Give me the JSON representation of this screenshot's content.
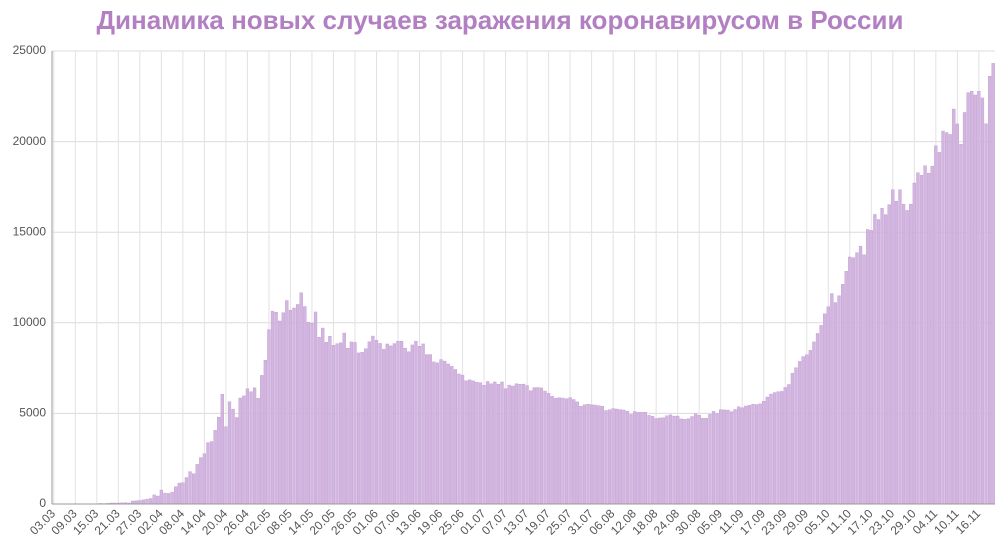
{
  "chart_data": {
    "type": "bar",
    "title": "Динамика новых случаев заражения коронавирусом в России",
    "title_color": "#b27fc2",
    "color": "#d3b6e0",
    "edge_color": "#bf98d0",
    "grid": true,
    "ylim": [
      0,
      25000
    ],
    "yticks": [
      0,
      5000,
      10000,
      15000,
      20000,
      25000
    ],
    "categories": [
      "03.03",
      null,
      null,
      null,
      null,
      null,
      "09.03",
      null,
      null,
      null,
      null,
      null,
      "15.03",
      null,
      null,
      null,
      null,
      null,
      "21.03",
      null,
      null,
      null,
      null,
      null,
      "27.03",
      null,
      null,
      null,
      null,
      null,
      "02.04",
      null,
      null,
      null,
      null,
      null,
      "08.04",
      null,
      null,
      null,
      null,
      null,
      "14.04",
      null,
      null,
      null,
      null,
      null,
      "20.04",
      null,
      null,
      null,
      null,
      null,
      "26.04",
      null,
      null,
      null,
      null,
      null,
      "02.05",
      null,
      null,
      null,
      null,
      null,
      "08.05",
      null,
      null,
      null,
      null,
      null,
      "14.05",
      null,
      null,
      null,
      null,
      null,
      "20.05",
      null,
      null,
      null,
      null,
      null,
      "26.05",
      null,
      null,
      null,
      null,
      null,
      "01.06",
      null,
      null,
      null,
      null,
      null,
      "07.06",
      null,
      null,
      null,
      null,
      null,
      "13.06",
      null,
      null,
      null,
      null,
      null,
      "19.06",
      null,
      null,
      null,
      null,
      null,
      "25.06",
      null,
      null,
      null,
      null,
      null,
      "01.07",
      null,
      null,
      null,
      null,
      null,
      "07.07",
      null,
      null,
      null,
      null,
      null,
      "13.07",
      null,
      null,
      null,
      null,
      null,
      "19.07",
      null,
      null,
      null,
      null,
      null,
      "25.07",
      null,
      null,
      null,
      null,
      null,
      "31.07",
      null,
      null,
      null,
      null,
      null,
      "06.08",
      null,
      null,
      null,
      null,
      null,
      "12.08",
      null,
      null,
      null,
      null,
      null,
      "18.08",
      null,
      null,
      null,
      null,
      null,
      "24.08",
      null,
      null,
      null,
      null,
      null,
      "30.08",
      null,
      null,
      null,
      null,
      null,
      "05.09",
      null,
      null,
      null,
      null,
      null,
      "11.09",
      null,
      null,
      null,
      null,
      null,
      "17.09",
      null,
      null,
      null,
      null,
      null,
      "23.09",
      null,
      null,
      null,
      null,
      null,
      "29.09",
      null,
      null,
      null,
      null,
      null,
      "05.10",
      null,
      null,
      null,
      null,
      null,
      "11.10",
      null,
      null,
      null,
      null,
      null,
      "17.10",
      null,
      null,
      null,
      null,
      null,
      "23.10",
      null,
      null,
      null,
      null,
      null,
      "29.10",
      null,
      null,
      null,
      null,
      null,
      "04.11",
      null,
      null,
      null,
      null,
      null,
      "10.11",
      null,
      null,
      null,
      null,
      null,
      "16.11",
      null,
      null,
      null,
      null
    ],
    "values": [
      0,
      0,
      0,
      1,
      0,
      0,
      0,
      7,
      3,
      14,
      6,
      11,
      14,
      30,
      21,
      33,
      52,
      54,
      53,
      61,
      71,
      57,
      163,
      182,
      196,
      228,
      270,
      302,
      501,
      440,
      771,
      601,
      582,
      658,
      954,
      1154,
      1175,
      1459,
      1786,
      1667,
      2186,
      2558,
      2774,
      3388,
      3448,
      4070,
      4785,
      6060,
      4268,
      5642,
      5236,
      4774,
      5849,
      5966,
      6361,
      6198,
      6411,
      5841,
      7099,
      7933,
      9623,
      10633,
      10581,
      10102,
      10559,
      11231,
      10699,
      10817,
      11012,
      11656,
      10899,
      10028,
      9974,
      10598,
      9200,
      9709,
      8926,
      9263,
      8764,
      8849,
      8894,
      9434,
      8599,
      8946,
      8915,
      8338,
      8371,
      8572,
      8952,
      9268,
      9035,
      8863,
      8536,
      8831,
      8726,
      8855,
      8984,
      8985,
      8595,
      8404,
      8779,
      8987,
      8706,
      8835,
      8246,
      8248,
      7843,
      7790,
      7972,
      7889,
      7728,
      7600,
      7425,
      7176,
      7113,
      6800,
      6852,
      6791,
      6719,
      6693,
      6556,
      6760,
      6632,
      6736,
      6611,
      6736,
      6368,
      6562,
      6509,
      6635,
      6611,
      6615,
      6537,
      6248,
      6422,
      6428,
      6406,
      6234,
      6109,
      5940,
      5842,
      5862,
      5848,
      5811,
      5871,
      5765,
      5635,
      5395,
      5475,
      5509,
      5482,
      5462,
      5427,
      5394,
      5159,
      5204,
      5267,
      5241,
      5212,
      5189,
      5118,
      4945,
      5102,
      5057,
      5061,
      5065,
      4892,
      4839,
      4718,
      4748,
      4767,
      4870,
      4921,
      4852,
      4852,
      4696,
      4676,
      4711,
      4829,
      4980,
      4897,
      4729,
      4729,
      4952,
      5110,
      4995,
      5205,
      5195,
      5185,
      5099,
      5218,
      5363,
      5310,
      5405,
      5449,
      5509,
      5488,
      5529,
      5670,
      5905,
      6065,
      6148,
      6196,
      6215,
      6431,
      6595,
      7212,
      7523,
      7867,
      8135,
      8232,
      8481,
      8945,
      9412,
      9859,
      10499,
      10888,
      11615,
      11115,
      11493,
      12126,
      12846,
      13634,
      13592,
      13868,
      14231,
      13754,
      15150,
      15099,
      15982,
      15700,
      16319,
      15971,
      16521,
      17340,
      16710,
      17347,
      16550,
      16202,
      16550,
      17717,
      18283,
      18140,
      18665,
      18257,
      18648,
      19768,
      19404,
      20582,
      20498,
      20396,
      21798,
      20977,
      19851,
      21608,
      22702,
      22778,
      22572,
      22778,
      22410,
      20985,
      23610,
      24318
    ]
  }
}
